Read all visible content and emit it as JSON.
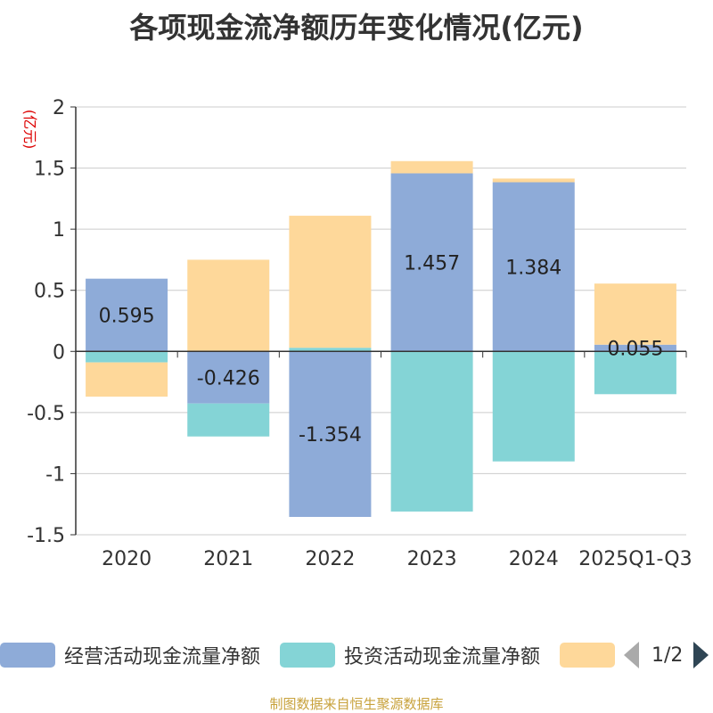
{
  "title": "各项现金流净额历年变化情况(亿元)",
  "y_unit": "(亿元)",
  "source": "制图数据来自恒生聚源数据库",
  "pager": {
    "text": "1/2"
  },
  "colors": {
    "operating": "#8eabd8",
    "investing": "#84d4d6",
    "financing": "#fed89a"
  },
  "chart_data": {
    "type": "bar",
    "stacked": true,
    "categories": [
      "2020",
      "2021",
      "2022",
      "2023",
      "2024",
      "2025Q1-Q3"
    ],
    "ylim": [
      -1.5,
      2
    ],
    "yticks": [
      "2",
      "1.5",
      "1",
      "0.5",
      "0",
      "-0.5",
      "-1",
      "-1.5"
    ],
    "grid": true,
    "legend_position": "bottom",
    "series": [
      {
        "name": "经营活动现金流量净额",
        "values": [
          0.595,
          -0.426,
          -1.354,
          1.457,
          1.384,
          0.055
        ],
        "labels": [
          "0.595",
          "-0.426",
          "-1.354",
          "1.457",
          "1.384",
          "0.055"
        ]
      },
      {
        "name": "投资活动现金流量净额",
        "values": [
          -0.09,
          -0.27,
          0.03,
          -1.31,
          -0.9,
          -0.35
        ]
      },
      {
        "name": "",
        "values": [
          -0.28,
          0.75,
          1.08,
          0.1,
          0.03,
          0.5
        ]
      }
    ]
  }
}
